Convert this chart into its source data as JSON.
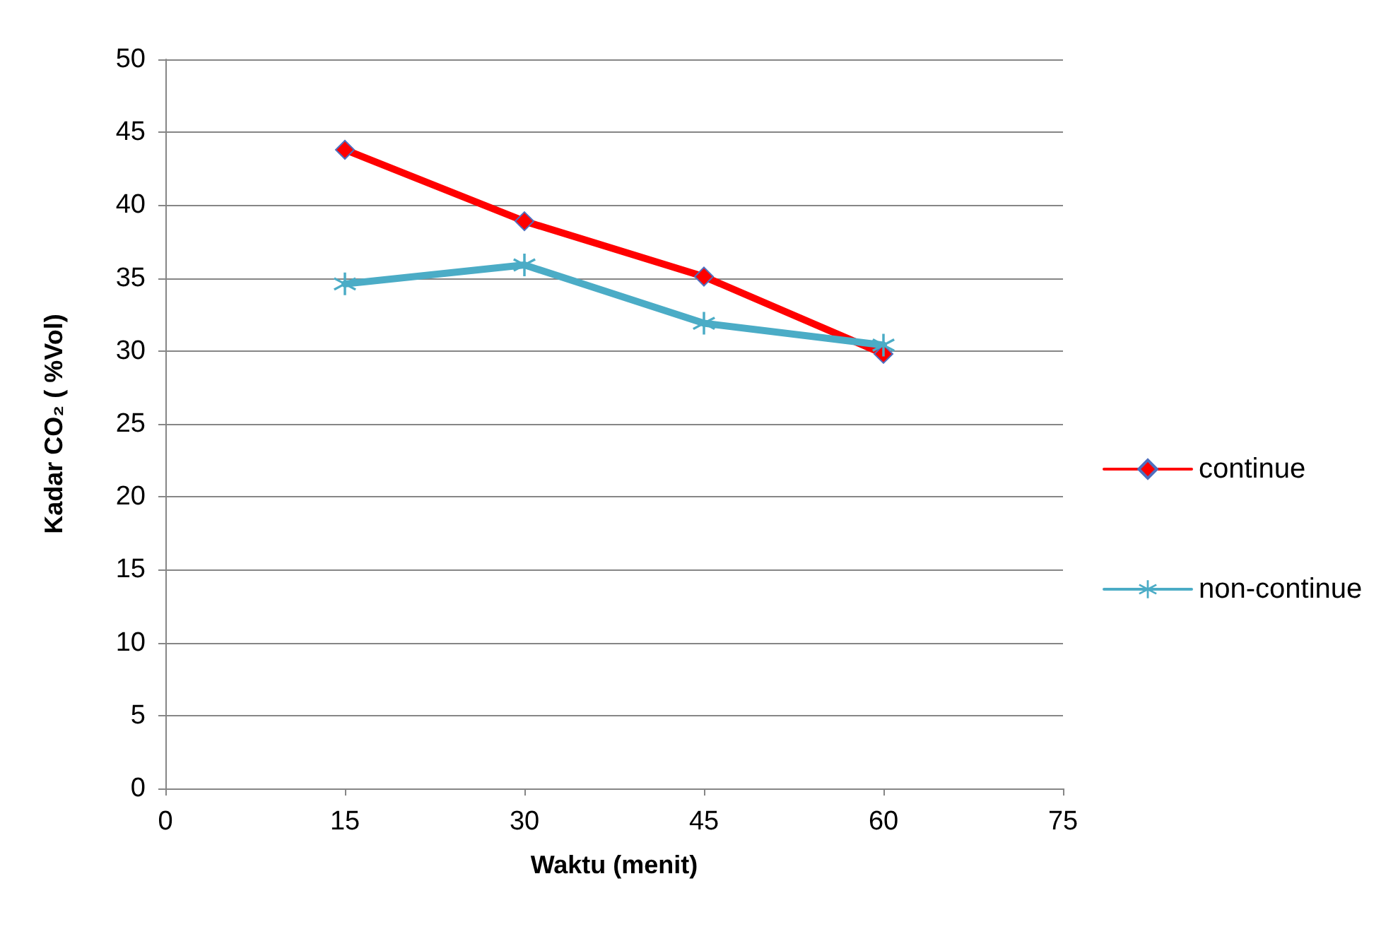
{
  "chart_data": {
    "type": "line",
    "xlabel": "Waktu (menit)",
    "ylabel": "Kadar CO₂ ( %Vol)",
    "x": [
      15,
      30,
      45,
      60
    ],
    "series": [
      {
        "name": "continue",
        "color": "#ff0000",
        "marker": "diamond",
        "values": [
          43.8,
          38.9,
          35.1,
          29.8
        ]
      },
      {
        "name": "non-continue",
        "color": "#4bacc6",
        "marker": "star",
        "values": [
          34.6,
          35.9,
          31.9,
          30.4
        ]
      }
    ],
    "xlim": [
      0,
      75
    ],
    "xticks": [
      0,
      15,
      30,
      45,
      60,
      75
    ],
    "ylim": [
      0,
      50
    ],
    "yticks": [
      0,
      5,
      10,
      15,
      20,
      25,
      30,
      35,
      40,
      45,
      50
    ],
    "grid": "y",
    "legend": "right",
    "line_style": "solid"
  }
}
